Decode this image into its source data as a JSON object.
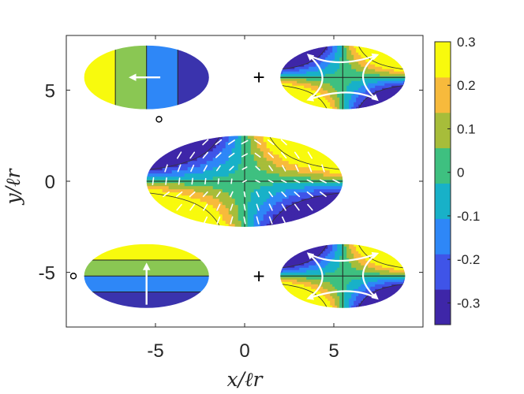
{
  "chart_data": {
    "type": "heatmap",
    "title": "",
    "xlabel": "x/ℓr",
    "ylabel": "y/ℓr",
    "xlim": [
      -10,
      10
    ],
    "ylim": [
      -8,
      8
    ],
    "xticks": [
      -5,
      0,
      5
    ],
    "xtick_labels": [
      "-5",
      "0",
      "5"
    ],
    "yticks": [
      -5,
      0,
      5
    ],
    "ytick_labels": [
      "-5",
      "0",
      "5"
    ],
    "grid": false,
    "colorbar": {
      "range": [
        -0.35,
        0.3
      ],
      "ticks": [
        0.3,
        0.2,
        0.1,
        0,
        -0.1,
        -0.2,
        -0.3
      ],
      "tick_labels": [
        "0.3",
        "0.2",
        "0.1",
        "0",
        "-0.1",
        "-0.2",
        "-0.3"
      ],
      "colormap": "parula",
      "colors": [
        "#3e26a8",
        "#3f54e8",
        "#2e87f7",
        "#18b1c8",
        "#3ec080",
        "#a7bd3a",
        "#f7ba3c",
        "#f8fa0d"
      ]
    },
    "panels": [
      {
        "name": "main",
        "center": [
          0,
          0
        ],
        "semi_axes": [
          5.5,
          2.5
        ],
        "pattern": "saddle",
        "arrows": "field"
      },
      {
        "name": "top-left",
        "center": [
          -5.5,
          5.7
        ],
        "semi_axes": [
          3.5,
          1.75
        ],
        "pattern": "vertical-bands",
        "arrow": "left"
      },
      {
        "name": "top-right",
        "center": [
          5.5,
          5.7
        ],
        "semi_axes": [
          3.5,
          1.75
        ],
        "pattern": "saddle",
        "arrows": "circulation"
      },
      {
        "name": "bottom-left",
        "center": [
          -5.5,
          -5.2
        ],
        "semi_axes": [
          3.5,
          1.75
        ],
        "pattern": "horizontal-bands",
        "arrow": "up"
      },
      {
        "name": "bottom-right",
        "center": [
          5.5,
          -5.2
        ],
        "semi_axes": [
          3.5,
          1.75
        ],
        "pattern": "saddle",
        "arrows": "circulation"
      }
    ],
    "markers": [
      {
        "type": "circle",
        "x": -4.8,
        "y": 3.4
      },
      {
        "type": "circle",
        "x": -9.6,
        "y": -5.2
      }
    ],
    "operators": [
      {
        "symbol": "+",
        "x": 0.8,
        "y": 5.7
      },
      {
        "symbol": "+",
        "x": 0.8,
        "y": -5.2
      }
    ]
  }
}
